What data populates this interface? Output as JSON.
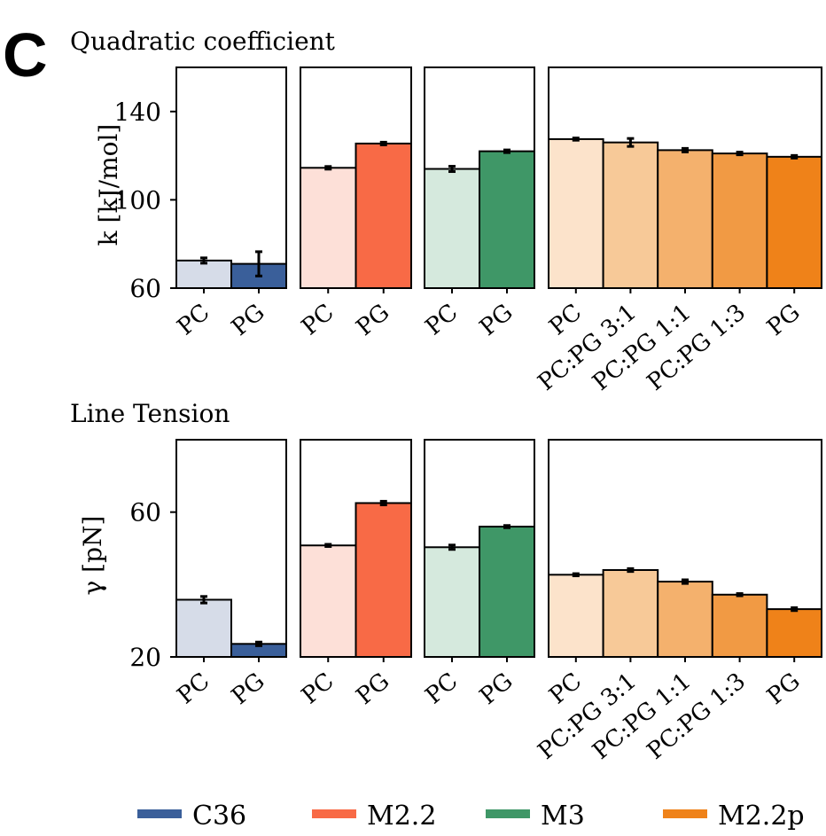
{
  "panel_letter": "C",
  "legend": [
    {
      "name": "C36",
      "color": "#3a5f9a"
    },
    {
      "name": "M2.2",
      "color": "#f86a46"
    },
    {
      "name": "M3",
      "color": "#3f9767"
    },
    {
      "name": "M2.2p",
      "color": "#ef8219"
    }
  ],
  "chart_data": [
    {
      "type": "bar",
      "title": "Quadratic coefficient",
      "ylabel": "k [kJ/mol]",
      "ylim": [
        60,
        160
      ],
      "yticks": [
        60,
        100,
        140
      ],
      "grid": false,
      "facets": [
        {
          "force_field": "C36",
          "categories": [
            "PC",
            "PG"
          ],
          "values": [
            72.5,
            71.0
          ],
          "errors": [
            1.2,
            5.5
          ],
          "colors": [
            "#d6dce8",
            "#3a5f9a"
          ]
        },
        {
          "force_field": "M2.2",
          "categories": [
            "PC",
            "PG"
          ],
          "values": [
            114.5,
            125.5
          ],
          "errors": [
            0.6,
            0.6
          ],
          "colors": [
            "#fde0d8",
            "#f86a46"
          ]
        },
        {
          "force_field": "M3",
          "categories": [
            "PC",
            "PG"
          ],
          "values": [
            114.0,
            122.0
          ],
          "errors": [
            1.2,
            0.6
          ],
          "colors": [
            "#d5e9dd",
            "#3f9767"
          ]
        },
        {
          "force_field": "M2.2p",
          "categories": [
            "PC",
            "PC:PG 3:1",
            "PC:PG 1:1",
            "PC:PG 1:3",
            "PG"
          ],
          "values": [
            127.5,
            126.0,
            122.5,
            121.0,
            119.5
          ],
          "errors": [
            0.5,
            1.8,
            0.8,
            0.6,
            0.6
          ],
          "colors": [
            "#fce3cb",
            "#f7c998",
            "#f4b16d",
            "#f19a44",
            "#ef8219"
          ]
        }
      ]
    },
    {
      "type": "bar",
      "title": "Line Tension",
      "ylabel": "γ [pN]",
      "ylim": [
        20,
        80
      ],
      "yticks": [
        20,
        60
      ],
      "grid": false,
      "facets": [
        {
          "force_field": "C36",
          "categories": [
            "PC",
            "PG"
          ],
          "values": [
            35.8,
            23.6
          ],
          "errors": [
            0.9,
            0.5
          ],
          "colors": [
            "#d6dce8",
            "#3a5f9a"
          ]
        },
        {
          "force_field": "M2.2",
          "categories": [
            "PC",
            "PG"
          ],
          "values": [
            50.8,
            62.5
          ],
          "errors": [
            0.3,
            0.5
          ],
          "colors": [
            "#fde0d8",
            "#f86a46"
          ]
        },
        {
          "force_field": "M3",
          "categories": [
            "PC",
            "PG"
          ],
          "values": [
            50.3,
            56.0
          ],
          "errors": [
            0.6,
            0.3
          ],
          "colors": [
            "#d5e9dd",
            "#3f9767"
          ]
        },
        {
          "force_field": "M2.2p",
          "categories": [
            "PC",
            "PC:PG 3:1",
            "PC:PG 1:1",
            "PC:PG 1:3",
            "PG"
          ],
          "values": [
            42.7,
            44.0,
            40.8,
            37.2,
            33.2
          ],
          "errors": [
            0.3,
            0.4,
            0.5,
            0.3,
            0.4
          ],
          "colors": [
            "#fce3cb",
            "#f7c998",
            "#f4b16d",
            "#f19a44",
            "#ef8219"
          ]
        }
      ]
    }
  ]
}
